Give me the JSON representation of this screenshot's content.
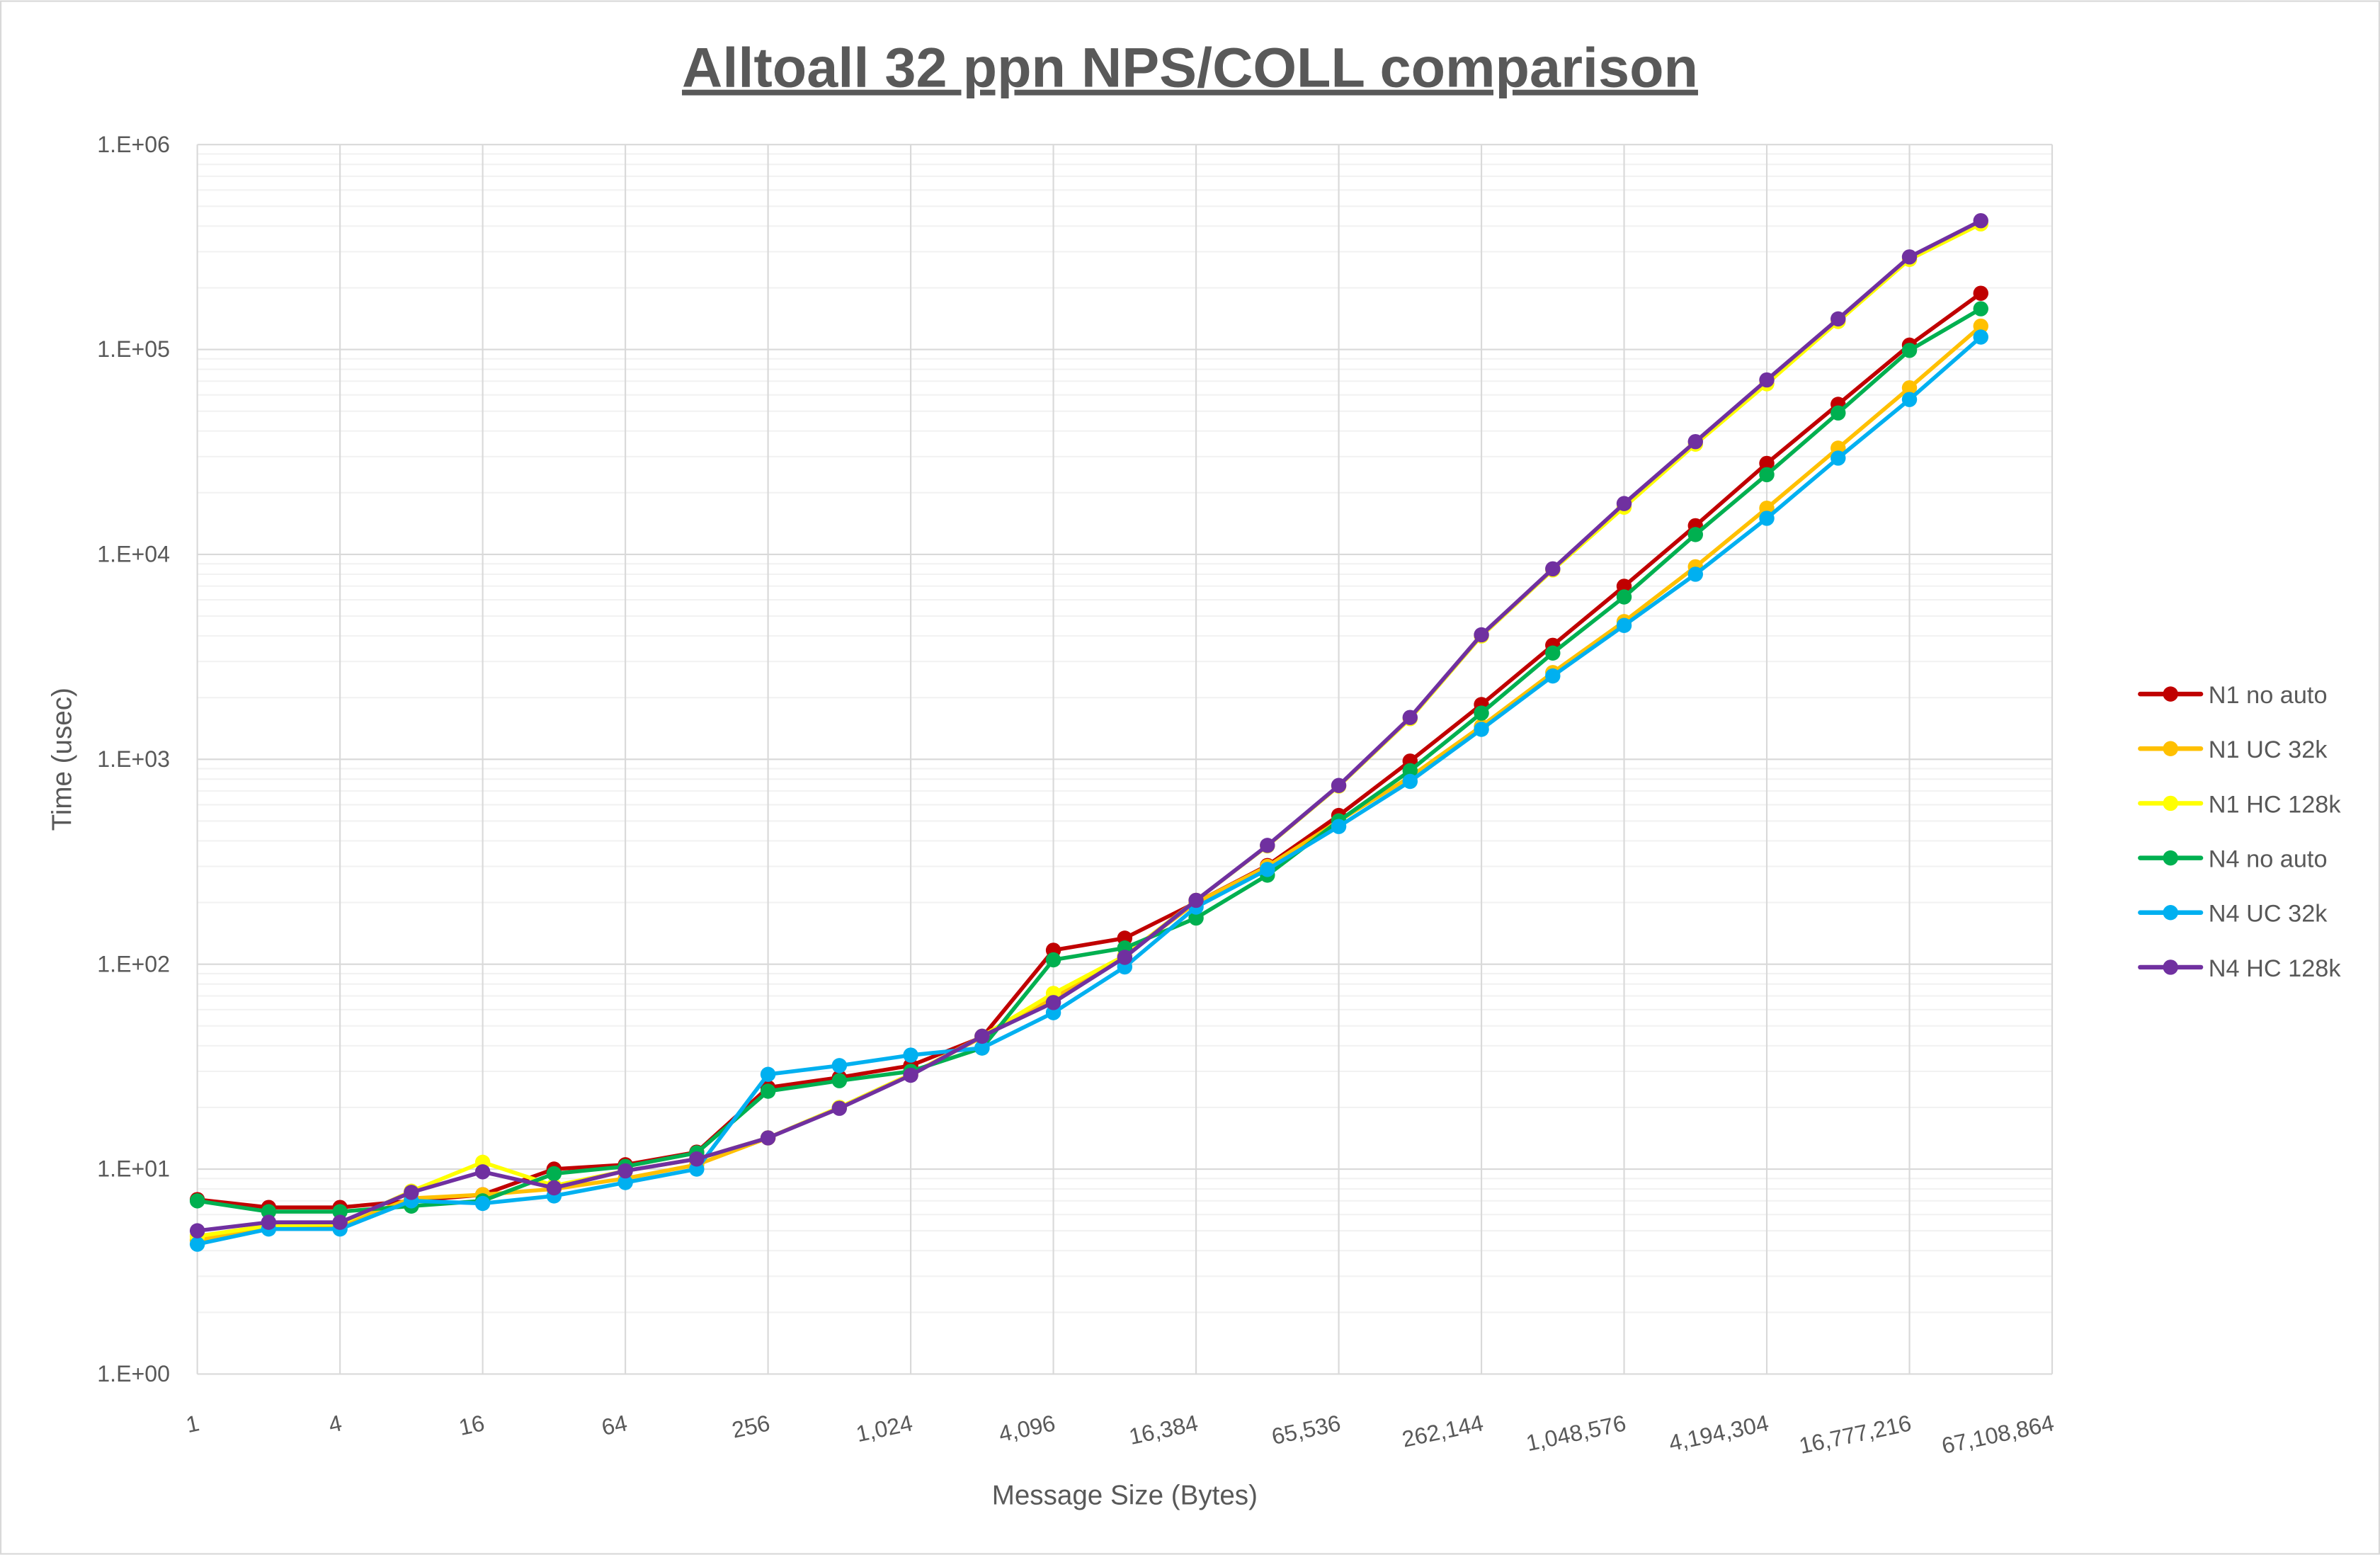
{
  "chart_data": {
    "type": "line",
    "title": "Alltoall 32 ppn NPS/COLL comparison",
    "xlabel": "Message Size (Bytes)",
    "ylabel": "Time (usec)",
    "yscale": "log",
    "ylim": [
      1,
      1000000
    ],
    "y_tick_labels": [
      "1.E+00",
      "1.E+01",
      "1.E+02",
      "1.E+03",
      "1.E+04",
      "1.E+05",
      "1.E+06"
    ],
    "x_categories": [
      1,
      2,
      4,
      8,
      16,
      32,
      64,
      128,
      256,
      512,
      1024,
      2048,
      4096,
      8192,
      16384,
      32768,
      65536,
      131072,
      262144,
      524288,
      1048576,
      2097152,
      4194304,
      8388608,
      16777216,
      33554432,
      67108864
    ],
    "x_tick_labels": [
      "1",
      "4",
      "16",
      "64",
      "256",
      "1,024",
      "4,096",
      "16,384",
      "65,536",
      "262,144",
      "1,048,576",
      "4,194,304",
      "16,777,216",
      "67,108,864"
    ],
    "grid": true,
    "legend_position": "right",
    "series": [
      {
        "name": "N1 no auto",
        "color": "#C00000",
        "values": [
          7.1,
          6.5,
          6.5,
          7.0,
          7.5,
          10.0,
          10.5,
          12.1,
          25,
          28,
          32,
          44,
          117,
          134,
          200,
          303,
          532,
          980,
          1850,
          3600,
          6990,
          13800,
          27800,
          54000,
          105000,
          188000,
          null
        ]
      },
      {
        "name": "N1 UC 32k",
        "color": "#FFC000",
        "values": [
          4.5,
          5.2,
          5.3,
          7.2,
          7.5,
          8.0,
          9.0,
          10.5,
          14.2,
          20,
          29,
          44,
          68,
          110,
          200,
          300,
          500,
          820,
          1450,
          2650,
          4700,
          8700,
          16800,
          33000,
          65000,
          130000,
          null
        ]
      },
      {
        "name": "N1 HC 128k",
        "color": "#FFFF00",
        "values": [
          4.7,
          5.3,
          5.4,
          7.8,
          10.8,
          8.3,
          9.8,
          11.2,
          14.2,
          20,
          29,
          44.5,
          72,
          110,
          205,
          378,
          740,
          1580,
          4000,
          8400,
          17000,
          34500,
          68000,
          137000,
          275000,
          410000,
          null
        ]
      },
      {
        "name": "N4 no auto",
        "color": "#00B050",
        "values": [
          7.0,
          6.2,
          6.2,
          6.6,
          7.0,
          9.5,
          10.3,
          12.0,
          24,
          27,
          30,
          39,
          105,
          120,
          168,
          272,
          500,
          880,
          1680,
          3300,
          6200,
          12500,
          24500,
          49000,
          99000,
          158000,
          null
        ]
      },
      {
        "name": "N4 UC 32k",
        "color": "#00B0F0",
        "values": [
          4.3,
          5.1,
          5.1,
          7.0,
          6.8,
          7.4,
          8.6,
          10.0,
          29,
          32,
          36,
          39,
          58,
          97,
          190,
          290,
          470,
          780,
          1400,
          2550,
          4500,
          8000,
          15000,
          29500,
          57000,
          115000,
          null
        ]
      },
      {
        "name": "N4 HC 128k",
        "color": "#7030A0",
        "values": [
          5.0,
          5.5,
          5.5,
          7.7,
          9.7,
          8.1,
          9.8,
          11.2,
          14.2,
          19.8,
          28.7,
          44.5,
          65,
          108,
          205,
          380,
          745,
          1600,
          4050,
          8500,
          17700,
          35500,
          71000,
          141000,
          283000,
          425000,
          null
        ]
      }
    ]
  }
}
